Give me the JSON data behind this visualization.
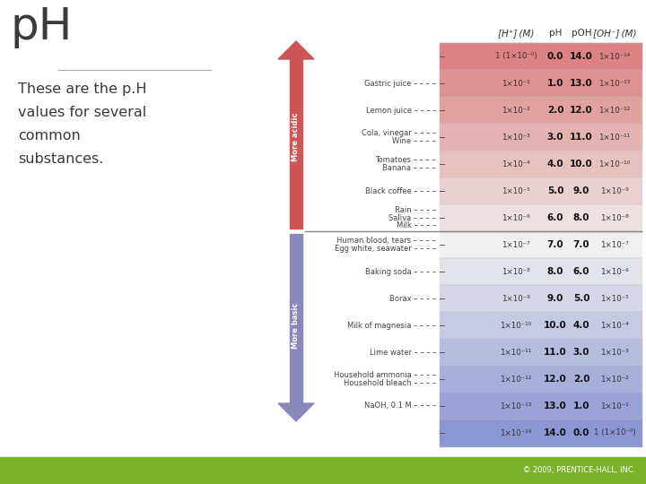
{
  "title": "pH",
  "copyright": "© 2009, PRENTICE-HALL, INC.",
  "bg_color": "#ffffff",
  "footer_color": "#7ab22a",
  "arrow_acid_color": "#cc5555",
  "arrow_base_color": "#8888bb",
  "rows": [
    {
      "h_conc": "1 (1×10⁻⁰)",
      "pH": "0.0",
      "poh": "14.0",
      "oh_conc": "1×10⁻¹⁴",
      "substance": ""
    },
    {
      "h_conc": "1×10⁻¹",
      "pH": "1.0",
      "poh": "13.0",
      "oh_conc": "1×10⁻¹³",
      "substance": "Gastric juice"
    },
    {
      "h_conc": "1×10⁻²",
      "pH": "2.0",
      "poh": "12.0",
      "oh_conc": "1×10⁻¹²",
      "substance": "Lemon juice"
    },
    {
      "h_conc": "1×10⁻³",
      "pH": "3.0",
      "poh": "11.0",
      "oh_conc": "1×10⁻¹¹",
      "substance": "Cola, vinegar\nWine"
    },
    {
      "h_conc": "1×10⁻⁴",
      "pH": "4.0",
      "poh": "10.0",
      "oh_conc": "1×10⁻¹⁰",
      "substance": "Tomatoes\nBanana"
    },
    {
      "h_conc": "1×10⁻⁵",
      "pH": "5.0",
      "poh": "9.0",
      "oh_conc": "1×10⁻⁹",
      "substance": "Black coffee"
    },
    {
      "h_conc": "1×10⁻⁶",
      "pH": "6.0",
      "poh": "8.0",
      "oh_conc": "1×10⁻⁸",
      "substance": "Rain\nSaliva\nMilk"
    },
    {
      "h_conc": "1×10⁻⁷",
      "pH": "7.0",
      "poh": "7.0",
      "oh_conc": "1×10⁻⁷",
      "substance": "Human blood, tears\nEgg white, seawater"
    },
    {
      "h_conc": "1×10⁻⁸",
      "pH": "8.0",
      "poh": "6.0",
      "oh_conc": "1×10⁻⁶",
      "substance": "Baking soda"
    },
    {
      "h_conc": "1×10⁻⁹",
      "pH": "9.0",
      "poh": "5.0",
      "oh_conc": "1×10⁻⁵",
      "substance": "Borax"
    },
    {
      "h_conc": "1×10⁻¹⁰",
      "pH": "10.0",
      "poh": "4.0",
      "oh_conc": "1×10⁻⁴",
      "substance": "Milk of magnesia"
    },
    {
      "h_conc": "1×10⁻¹¹",
      "pH": "11.0",
      "poh": "3.0",
      "oh_conc": "1×10⁻³",
      "substance": "Lime water"
    },
    {
      "h_conc": "1×10⁻¹²",
      "pH": "12.0",
      "poh": "2.0",
      "oh_conc": "1×10⁻²",
      "substance": "Household ammonia\nHousehold bleach"
    },
    {
      "h_conc": "1×10⁻¹³",
      "pH": "13.0",
      "poh": "1.0",
      "oh_conc": "1×10⁻¹",
      "substance": "NaOH, 0.1 M"
    },
    {
      "h_conc": "1×10⁻¹⁴",
      "pH": "14.0",
      "poh": "0.0",
      "oh_conc": "1 (1×10⁻⁰)",
      "substance": ""
    }
  ]
}
